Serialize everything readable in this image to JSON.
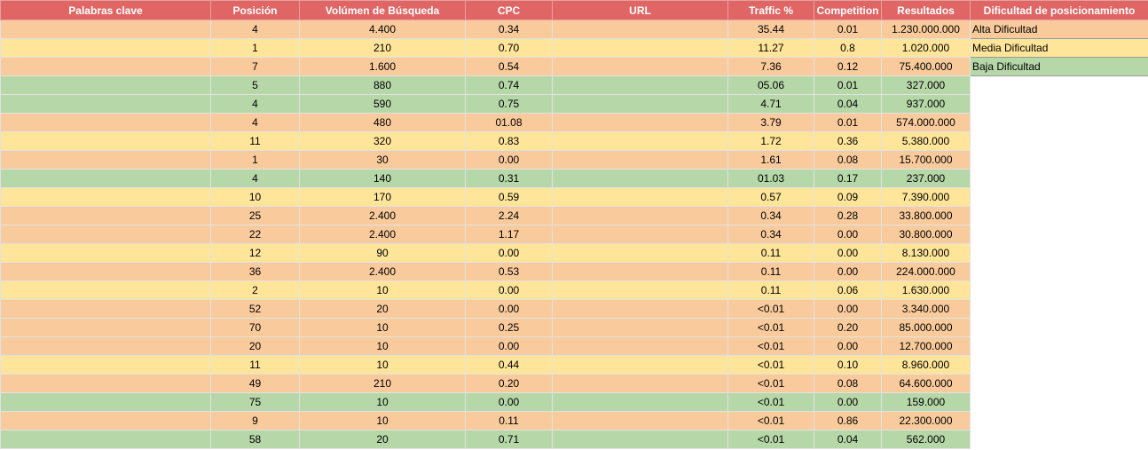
{
  "header_color": "#e06666",
  "table": {
    "headers": [
      "Palabras clave",
      "Posición",
      "Volúmen de Búsqueda",
      "CPC",
      "URL",
      "Traffic %",
      "Competition",
      "Resultados",
      "Dificultad de posicionamiento"
    ],
    "legend": [
      {
        "label": "Alta Dificultad",
        "color": "#f9cb9c"
      },
      {
        "label": "Media Dificultad",
        "color": "#ffe599"
      },
      {
        "label": "Baja Dificultad",
        "color": "#b6d7a8"
      }
    ],
    "rows": [
      {
        "color": "#f9cb9c",
        "cells": [
          null,
          "4",
          "4.400",
          "0.34",
          null,
          "35.44",
          "0.01",
          "1.230.000.000"
        ]
      },
      {
        "color": "#ffe599",
        "cells": [
          null,
          "1",
          "210",
          "0.70",
          null,
          "11.27",
          "0.8",
          "1.020.000"
        ]
      },
      {
        "color": "#f9cb9c",
        "cells": [
          null,
          "7",
          "1.600",
          "0.54",
          null,
          "7.36",
          "0.12",
          "75.400.000"
        ]
      },
      {
        "color": "#b6d7a8",
        "cells": [
          null,
          "5",
          "880",
          "0.74",
          null,
          "05.06",
          "0.01",
          "327.000"
        ]
      },
      {
        "color": "#b6d7a8",
        "cells": [
          null,
          "4",
          "590",
          "0.75",
          null,
          "4.71",
          "0.04",
          "937.000"
        ]
      },
      {
        "color": "#f9cb9c",
        "cells": [
          null,
          "4",
          "480",
          "01.08",
          null,
          "3.79",
          "0.01",
          "574.000.000"
        ]
      },
      {
        "color": "#ffe599",
        "cells": [
          null,
          "11",
          "320",
          "0.83",
          null,
          "1.72",
          "0.36",
          "5.380.000"
        ]
      },
      {
        "color": "#f9cb9c",
        "cells": [
          null,
          "1",
          "30",
          "0.00",
          null,
          "1.61",
          "0.08",
          "15.700.000"
        ]
      },
      {
        "color": "#b6d7a8",
        "cells": [
          null,
          "4",
          "140",
          "0.31",
          null,
          "01.03",
          "0.17",
          "237.000"
        ]
      },
      {
        "color": "#ffe599",
        "cells": [
          null,
          "10",
          "170",
          "0.59",
          null,
          "0.57",
          "0.09",
          "7.390.000"
        ]
      },
      {
        "color": "#f9cb9c",
        "cells": [
          null,
          "25",
          "2.400",
          "2.24",
          null,
          "0.34",
          "0.28",
          "33.800.000"
        ]
      },
      {
        "color": "#f9cb9c",
        "cells": [
          null,
          "22",
          "2.400",
          "1.17",
          null,
          "0.34",
          "0.00",
          "30.800.000"
        ]
      },
      {
        "color": "#ffe599",
        "cells": [
          null,
          "12",
          "90",
          "0.00",
          null,
          "0.11",
          "0.00",
          "8.130.000"
        ]
      },
      {
        "color": "#f9cb9c",
        "cells": [
          null,
          "36",
          "2.400",
          "0.53",
          null,
          "0.11",
          "0.00",
          "224.000.000"
        ]
      },
      {
        "color": "#ffe599",
        "cells": [
          null,
          "2",
          "10",
          "0.00",
          null,
          "0.11",
          "0.06",
          "1.630.000"
        ]
      },
      {
        "color": "#f9cb9c",
        "cells": [
          null,
          "52",
          "20",
          "0.00",
          null,
          "<0.01",
          "0.00",
          "3.340.000"
        ]
      },
      {
        "color": "#f9cb9c",
        "cells": [
          null,
          "70",
          "10",
          "0.25",
          null,
          "<0.01",
          "0.20",
          "85.000.000"
        ]
      },
      {
        "color": "#f9cb9c",
        "cells": [
          null,
          "20",
          "10",
          "0.00",
          null,
          "<0.01",
          "0.00",
          "12.700.000"
        ]
      },
      {
        "color": "#ffe599",
        "cells": [
          null,
          "11",
          "10",
          "0.44",
          null,
          "<0.01",
          "0.10",
          "8.960.000"
        ]
      },
      {
        "color": "#f9cb9c",
        "cells": [
          null,
          "49",
          "210",
          "0.20",
          null,
          "<0.01",
          "0.08",
          "64.600.000"
        ]
      },
      {
        "color": "#b6d7a8",
        "cells": [
          null,
          "75",
          "10",
          "0.00",
          null,
          "<0.01",
          "0.00",
          "159.000"
        ]
      },
      {
        "color": "#f9cb9c",
        "cells": [
          null,
          "9",
          "10",
          "0.11",
          null,
          "<0.01",
          "0.86",
          "22.300.000"
        ]
      },
      {
        "color": "#b6d7a8",
        "cells": [
          null,
          "58",
          "20",
          "0.71",
          null,
          "<0.01",
          "0.04",
          "562.000"
        ]
      }
    ]
  }
}
